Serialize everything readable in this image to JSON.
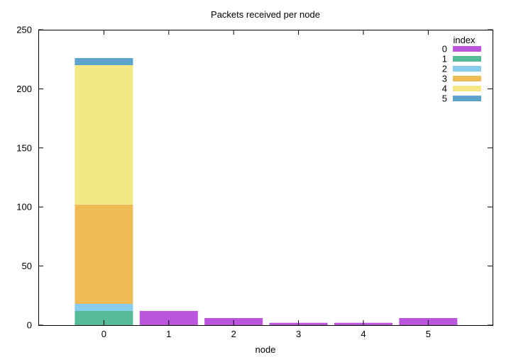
{
  "chart_data": {
    "type": "bar",
    "stacked": true,
    "title": "Packets received per node",
    "xlabel": "node",
    "ylabel": "",
    "categories": [
      "0",
      "1",
      "2",
      "3",
      "4",
      "5"
    ],
    "ylim": [
      0,
      250
    ],
    "yticks": [
      0,
      50,
      100,
      150,
      200,
      250
    ],
    "legend_title": "index",
    "legend_position": "top-right",
    "grid": false,
    "series": [
      {
        "name": "0",
        "color": "#bb55dd",
        "values": [
          0,
          12,
          6,
          2,
          2,
          6
        ]
      },
      {
        "name": "1",
        "color": "#55bb99",
        "values": [
          12,
          0,
          0,
          0,
          0,
          0
        ]
      },
      {
        "name": "2",
        "color": "#88ccee",
        "values": [
          6,
          0,
          0,
          0,
          0,
          0
        ]
      },
      {
        "name": "3",
        "color": "#eebb55",
        "values": [
          84,
          0,
          0,
          0,
          0,
          0
        ]
      },
      {
        "name": "4",
        "color": "#f4e884",
        "values": [
          118,
          0,
          0,
          0,
          0,
          0
        ]
      },
      {
        "name": "5",
        "color": "#5ba5cc",
        "values": [
          6,
          0,
          0,
          0,
          0,
          0
        ]
      }
    ]
  }
}
